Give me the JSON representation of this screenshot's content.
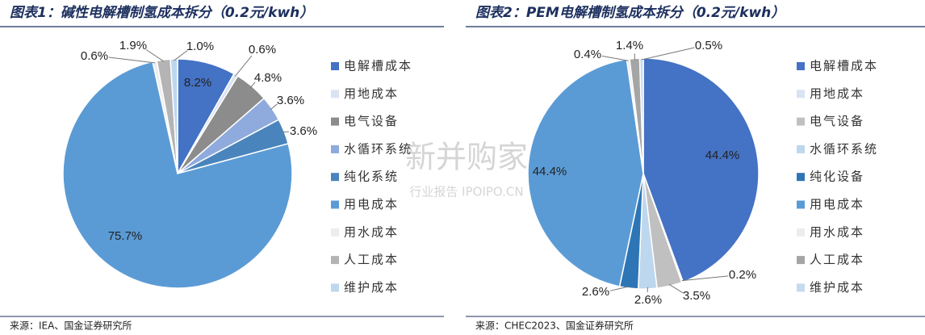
{
  "chart_data": [
    {
      "type": "pie",
      "title": "图表1：碱性电解槽制氢成本拆分（0.2元/kwh）",
      "categories": [
        "电解槽成本",
        "用地成本",
        "电气设备",
        "水循环系统",
        "纯化系统",
        "用电成本",
        "用水成本",
        "人工成本",
        "维护成本"
      ],
      "values": [
        8.2,
        0.6,
        4.8,
        3.6,
        3.6,
        75.7,
        0.6,
        1.9,
        1.0
      ],
      "value_labels": [
        "8.2%",
        "0.6%",
        "4.8%",
        "3.6%",
        "3.6%",
        "75.7%",
        "0.6%",
        "1.9%",
        "1.0%"
      ],
      "colors": [
        "#4472c4",
        "#dae3f3",
        "#8c8c8c",
        "#8faadc",
        "#4a84bd",
        "#5b9bd5",
        "#ededed",
        "#b4b4b4",
        "#bdd7ee"
      ],
      "legend": "right",
      "source": "来源：IEA、国金证券研究所"
    },
    {
      "type": "pie",
      "title": "图表2：PEM电解槽制氢成本拆分（0.2元/kwh）",
      "categories": [
        "电解槽成本",
        "用地成本",
        "电气设备",
        "水循环系统",
        "纯化设备",
        "用电成本",
        "用水成本",
        "人工成本",
        "维护成本"
      ],
      "values": [
        44.4,
        0.2,
        3.5,
        2.6,
        2.6,
        44.4,
        0.4,
        1.4,
        0.5
      ],
      "value_labels": [
        "44.4%",
        "0.2%",
        "3.5%",
        "2.6%",
        "2.6%",
        "44.4%",
        "0.4%",
        "1.4%",
        "0.5%"
      ],
      "colors": [
        "#4472c4",
        "#dae3f3",
        "#c0c0c0",
        "#bdd7ee",
        "#2e75b6",
        "#5b9bd5",
        "#ededed",
        "#a5a5a5",
        "#c5d9f1"
      ],
      "legend": "right",
      "source": "来源：CHEC2023、国金证券研究所"
    }
  ],
  "watermark": {
    "title": "新并购家",
    "subtitle": "行业报告 IPOIPO.CN"
  }
}
